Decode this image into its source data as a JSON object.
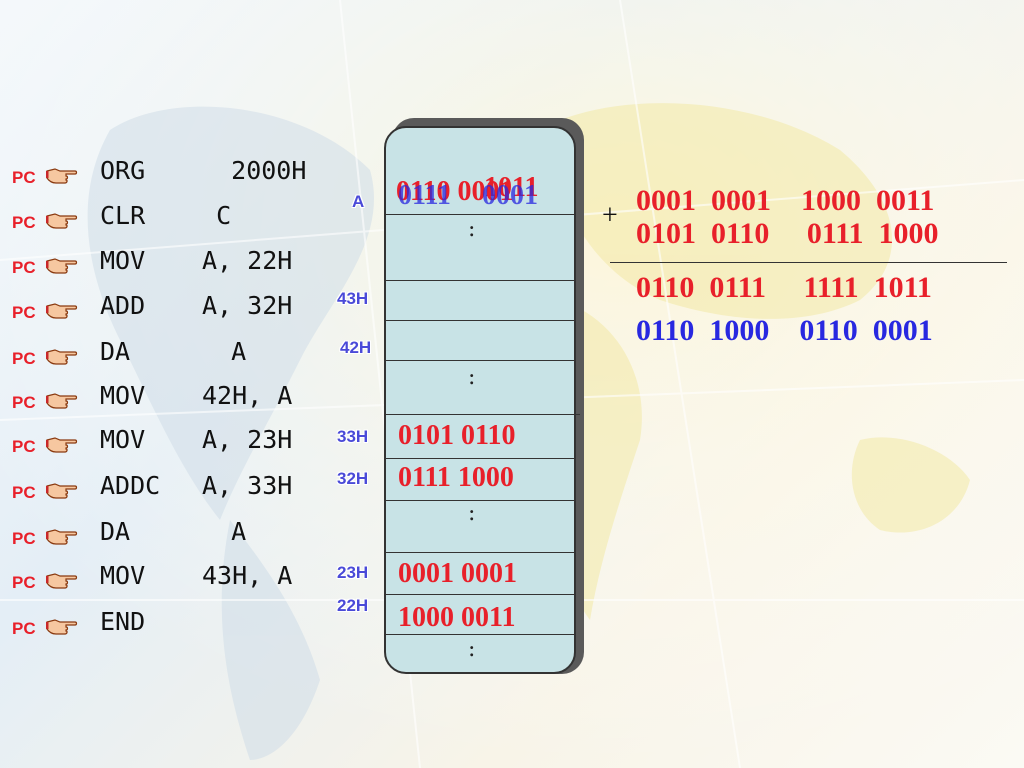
{
  "program": [
    {
      "pc": "PC",
      "op": "ORG",
      "args": "   2000H"
    },
    {
      "pc": "PC",
      "op": "CLR",
      "args": "  C"
    },
    {
      "pc": "PC",
      "op": "MOV",
      "args": "A, 22H"
    },
    {
      "pc": "PC",
      "op": "ADD",
      "args": "A, 32H"
    },
    {
      "pc": "PC",
      "op": "DA",
      "args": "   A"
    },
    {
      "pc": "PC",
      "op": "MOV",
      "args": "42H, A"
    },
    {
      "pc": "PC",
      "op": "MOV",
      "args": "A, 23H"
    },
    {
      "pc": "PC",
      "op": "ADDC",
      "args": "A, 33H"
    },
    {
      "pc": "PC",
      "op": "DA",
      "args": "   A"
    },
    {
      "pc": "PC",
      "op": "MOV",
      "args": "43H, A"
    },
    {
      "pc": "PC",
      "op": "END",
      "args": ""
    }
  ],
  "register": {
    "label": "A",
    "overlay_values": [
      "0110 0001",
      "1011",
      "0111",
      "0001"
    ]
  },
  "memory": {
    "dots": ":",
    "addresses": {
      "a43": "43H",
      "a42": "42H",
      "a33": "33H",
      "a32": "32H",
      "a23": "23H",
      "a22": "22H"
    },
    "values": {
      "v33": "0101  0110",
      "v32": "0111  1000",
      "v23": "0001  0001",
      "v22": "1000  0011"
    }
  },
  "addition": {
    "plus": "+",
    "line1": "0001  0001    1000  0011",
    "line2": "0101  0110     0111  1000",
    "result": "0110  0111     1111  1011",
    "adjusted": "0110  1000    0110  0001"
  },
  "colors": {
    "accent_red": "#e8202a",
    "accent_blue": "#2828e0",
    "address_blue": "#4a4ad8",
    "memory_fill": "#c8e3e6"
  },
  "icons": {
    "pointer": "pointing-hand-icon"
  }
}
